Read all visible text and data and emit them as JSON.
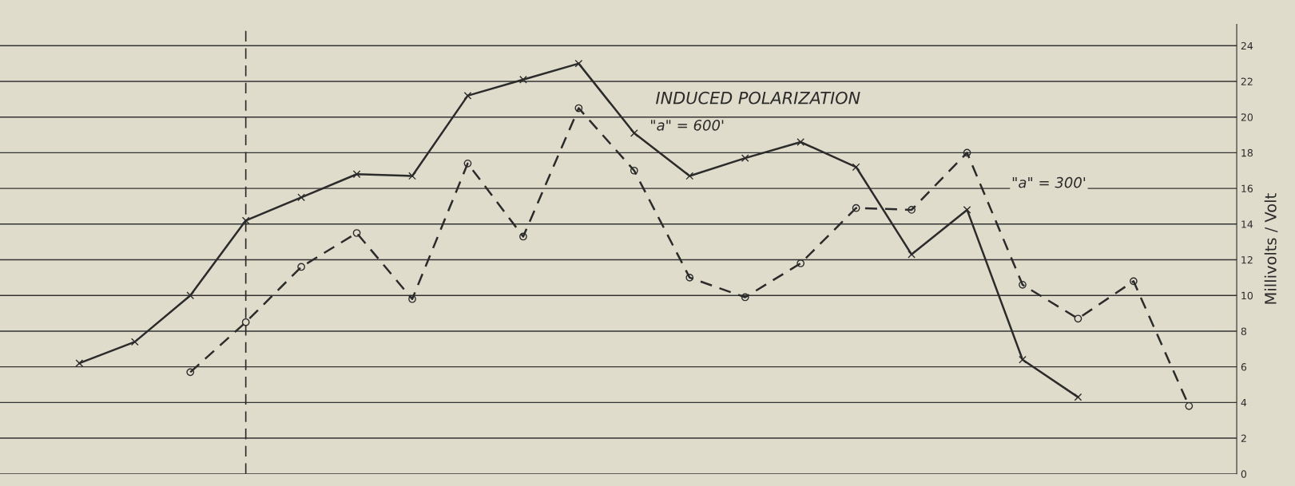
{
  "chart_data": {
    "type": "line",
    "title": "INDUCED POLARIZATION",
    "ylabel": "Millivolts / Volt",
    "categories": [
      null,
      null,
      null,
      null,
      null,
      null,
      null,
      null,
      null,
      null,
      null,
      null,
      null,
      null,
      null,
      null,
      null,
      null,
      null,
      null,
      null
    ],
    "series": [
      {
        "name": "\"a\" = 600'",
        "color": "#2b2b2b",
        "marker": "cross",
        "line_style": "solid",
        "values": [
          6.2,
          7.4,
          10.0,
          14.2,
          15.5,
          16.8,
          16.7,
          21.2,
          22.1,
          23.0,
          19.1,
          16.7,
          17.7,
          18.6,
          17.2,
          12.3,
          14.8,
          6.4,
          4.3,
          null,
          null
        ]
      },
      {
        "name": "\"a\" = 300'",
        "color": "#2b2b2b",
        "marker": "circle",
        "line_style": "dashed",
        "values": [
          null,
          null,
          5.7,
          8.5,
          11.6,
          13.5,
          9.8,
          17.4,
          13.3,
          20.5,
          17.0,
          11.0,
          9.9,
          11.8,
          14.9,
          14.8,
          18.0,
          10.6,
          8.7,
          10.8,
          3.8
        ]
      }
    ],
    "ylim": [
      0,
      25.2
    ],
    "yticks": [
      0,
      2,
      4,
      6,
      8,
      10,
      12,
      14,
      16,
      18,
      20,
      22,
      24
    ],
    "grid": "y",
    "legend": false,
    "tick_labels": "y"
  }
}
